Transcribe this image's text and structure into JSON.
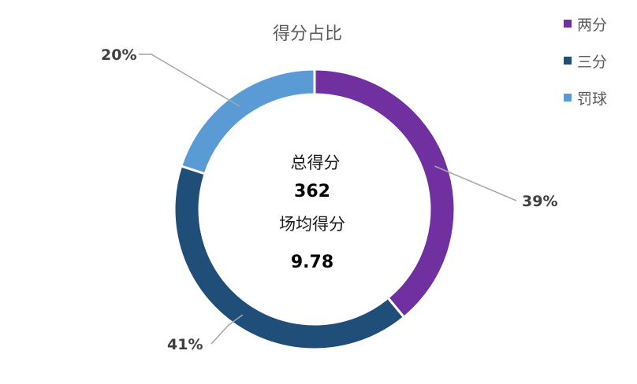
{
  "chart_data": {
    "type": "pie",
    "title": "得分占比",
    "categories": [
      "两分",
      "三分",
      "罚球"
    ],
    "values": [
      39,
      41,
      20
    ],
    "labels": [
      "39%",
      "41%",
      "20%"
    ],
    "colors": [
      "#7030A0",
      "#1F4E79",
      "#5B9BD5"
    ],
    "legend_position": "top-right",
    "center": {
      "total_label": "总得分",
      "total_value": "362",
      "avg_label": "场均得分",
      "avg_value": "9.78"
    }
  }
}
